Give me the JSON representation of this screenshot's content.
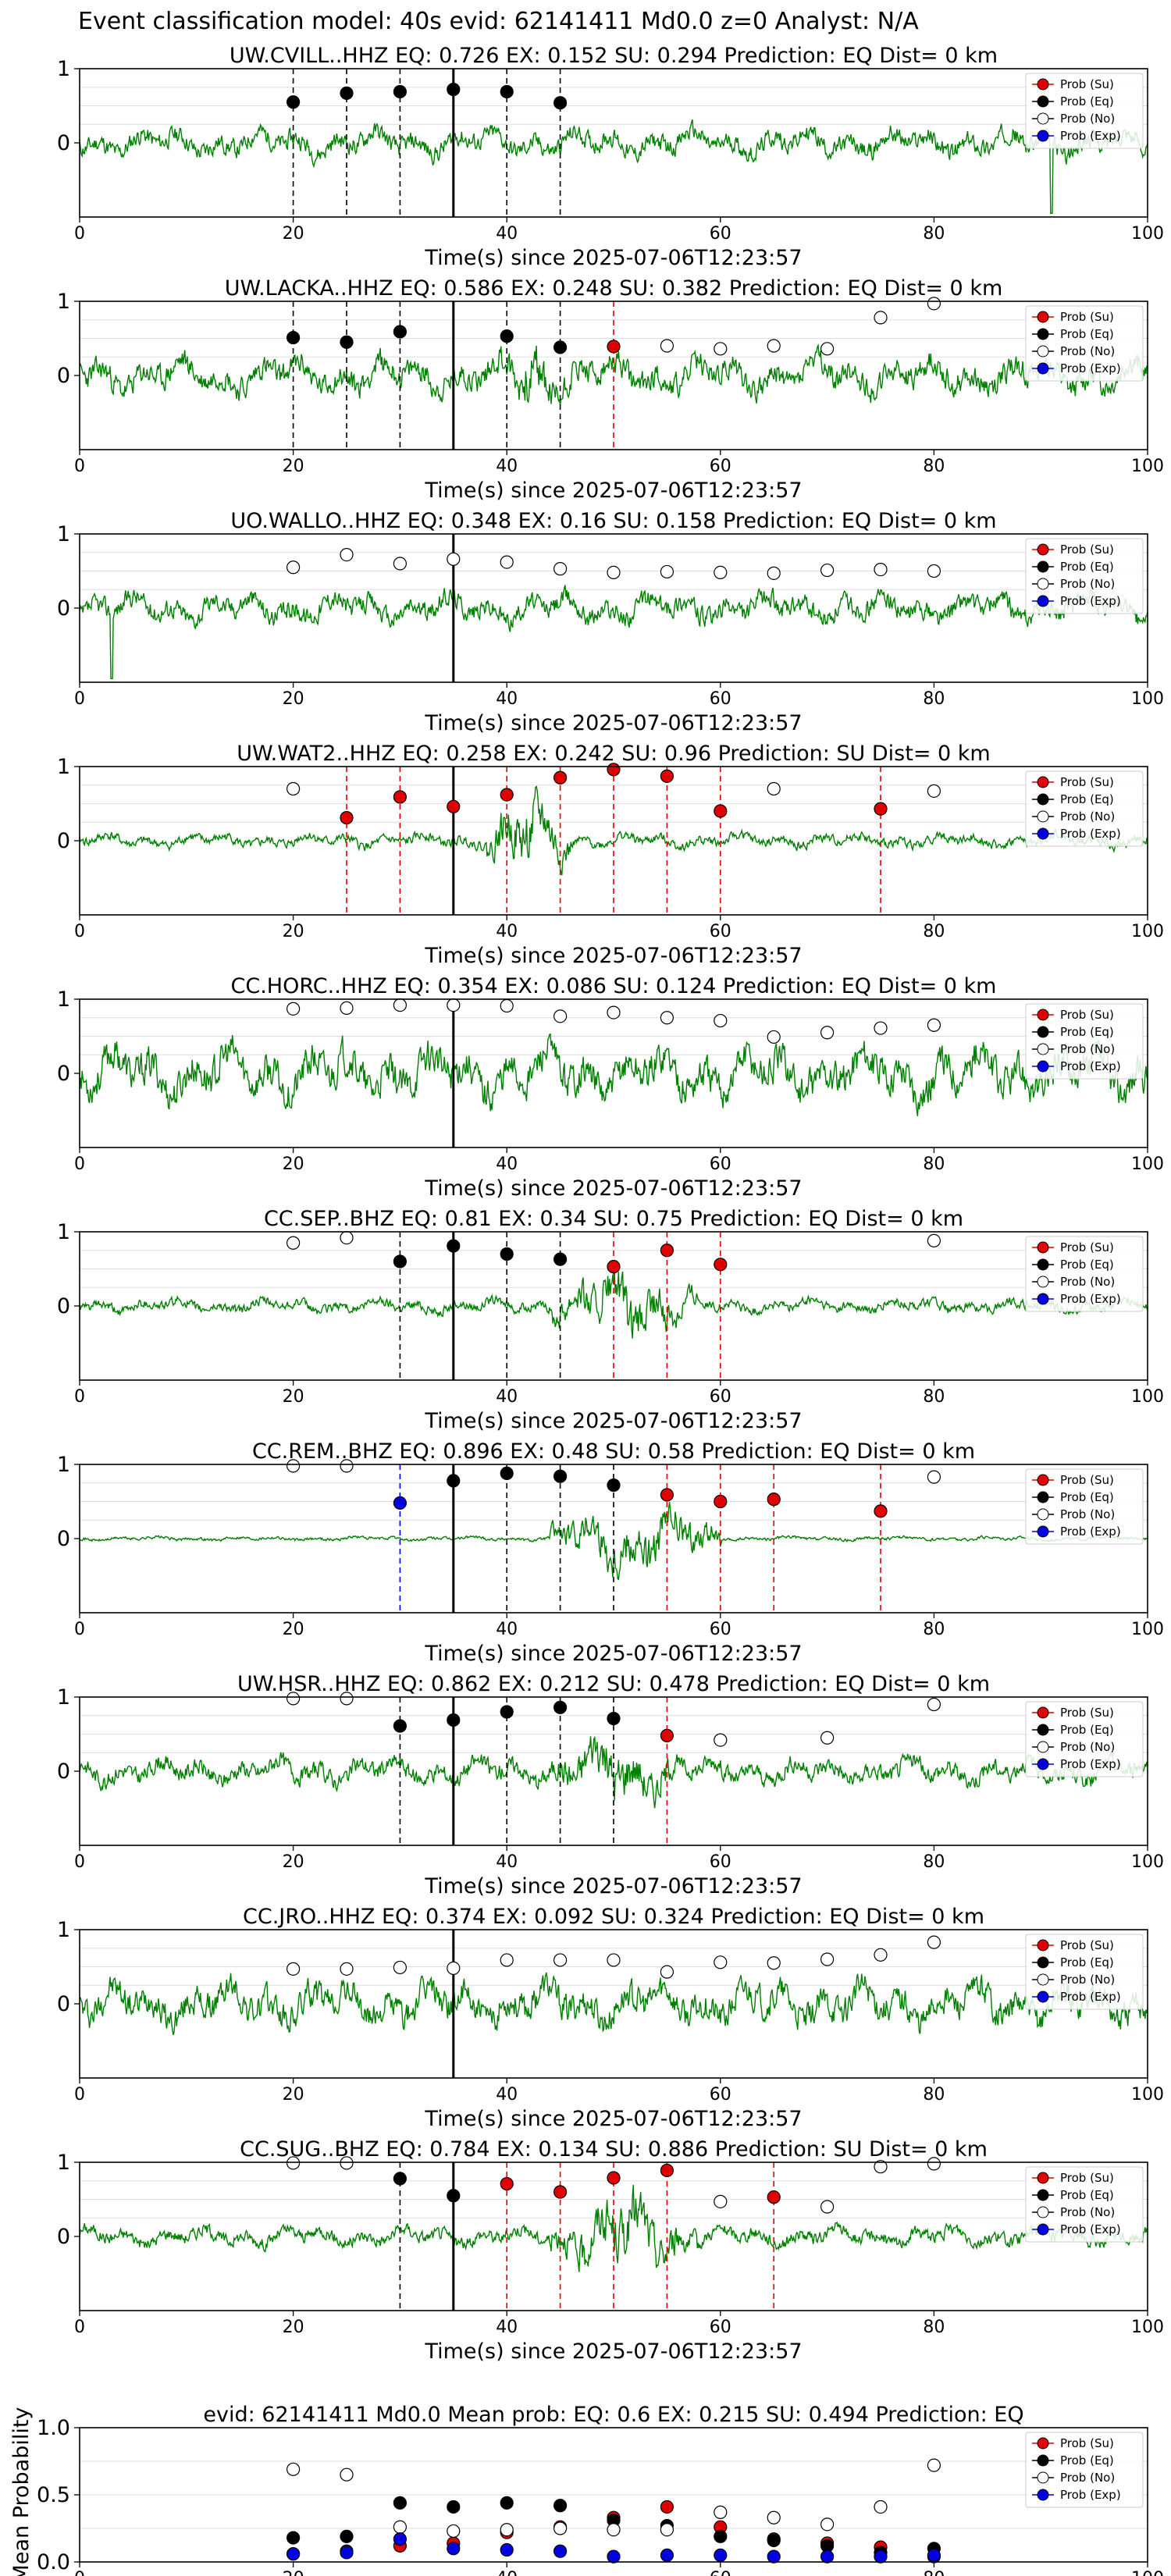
{
  "figure": {
    "suptitle": "Event classification model: 40s evid: 62141411 Md0.0 z=0 Analyst: N/A",
    "xlabel": "Time(s) since 2025-07-06T12:23:57",
    "xticks": [
      "0",
      "20",
      "40",
      "60",
      "80",
      "100"
    ],
    "yticks": [
      "1",
      "0"
    ],
    "legend": [
      "Prob (Su)",
      "Prob (Eq)",
      "Prob (No)",
      "Prob (Exp)"
    ],
    "legend_placement": "top-right",
    "colors": {
      "waveform": "#008000",
      "su": "#e00000",
      "eq": "#000000",
      "no": "#ffffff",
      "exp": "#0000e0",
      "grid": "#dddddd"
    }
  },
  "chart_data": [
    {
      "type": "line",
      "title": "UW.CVILL..HHZ   EQ: 0.726  EX: 0.152  SU: 0.294   Prediction: EQ    Dist= 0 km",
      "xlabel": "Time(s) since 2025-07-06T12:23:57",
      "xlim": [
        0,
        100
      ],
      "ylim": [
        -1,
        1
      ],
      "seed": 11,
      "amp": 0.32,
      "burst": null,
      "spike": [
        [
          91,
          -0.95
        ]
      ],
      "pick": 35,
      "vlines": [
        {
          "t": 20,
          "c": "eq"
        },
        {
          "t": 25,
          "c": "eq"
        },
        {
          "t": 30,
          "c": "eq"
        },
        {
          "t": 40,
          "c": "eq"
        },
        {
          "t": 45,
          "c": "eq"
        }
      ],
      "points": [
        {
          "t": 20,
          "p": 0.55,
          "c": "eq"
        },
        {
          "t": 25,
          "p": 0.67,
          "c": "eq"
        },
        {
          "t": 30,
          "p": 0.69,
          "c": "eq"
        },
        {
          "t": 35,
          "p": 0.72,
          "c": "eq"
        },
        {
          "t": 40,
          "p": 0.69,
          "c": "eq"
        },
        {
          "t": 45,
          "p": 0.54,
          "c": "eq"
        }
      ]
    },
    {
      "type": "line",
      "title": "UW.LACKA..HHZ   EQ: 0.586  EX: 0.248  SU: 0.382   Prediction: EQ    Dist= 0 km",
      "xlabel": "Time(s) since 2025-07-06T12:23:57",
      "xlim": [
        0,
        100
      ],
      "ylim": [
        -1,
        1
      ],
      "seed": 23,
      "amp": 0.42,
      "burst": [
        38,
        47,
        0.9
      ],
      "spike": null,
      "pick": 35,
      "vlines": [
        {
          "t": 20,
          "c": "eq"
        },
        {
          "t": 25,
          "c": "eq"
        },
        {
          "t": 30,
          "c": "eq"
        },
        {
          "t": 40,
          "c": "eq"
        },
        {
          "t": 45,
          "c": "eq"
        },
        {
          "t": 50,
          "c": "su"
        }
      ],
      "points": [
        {
          "t": 20,
          "p": 0.51,
          "c": "eq"
        },
        {
          "t": 25,
          "p": 0.45,
          "c": "eq"
        },
        {
          "t": 30,
          "p": 0.59,
          "c": "eq"
        },
        {
          "t": 40,
          "p": 0.53,
          "c": "eq"
        },
        {
          "t": 45,
          "p": 0.38,
          "c": "eq"
        },
        {
          "t": 50,
          "p": 0.39,
          "c": "su"
        },
        {
          "t": 55,
          "p": 0.4,
          "c": "no"
        },
        {
          "t": 60,
          "p": 0.36,
          "c": "no"
        },
        {
          "t": 65,
          "p": 0.4,
          "c": "no"
        },
        {
          "t": 70,
          "p": 0.36,
          "c": "no"
        },
        {
          "t": 75,
          "p": 0.78,
          "c": "no"
        },
        {
          "t": 80,
          "p": 0.97,
          "c": "no"
        }
      ]
    },
    {
      "type": "line",
      "title": "UO.WALLO..HHZ   EQ: 0.348  EX: 0.16  SU: 0.158   Prediction: EQ    Dist= 0 km",
      "xlabel": "Time(s) since 2025-07-06T12:23:57",
      "xlim": [
        0,
        100
      ],
      "ylim": [
        -1,
        1
      ],
      "seed": 37,
      "amp": 0.34,
      "burst": null,
      "spike": [
        [
          3,
          -0.95
        ]
      ],
      "pick": 35,
      "vlines": [],
      "points": [
        {
          "t": 20,
          "p": 0.55,
          "c": "no"
        },
        {
          "t": 25,
          "p": 0.72,
          "c": "no"
        },
        {
          "t": 30,
          "p": 0.6,
          "c": "no"
        },
        {
          "t": 35,
          "p": 0.66,
          "c": "no"
        },
        {
          "t": 40,
          "p": 0.62,
          "c": "no"
        },
        {
          "t": 45,
          "p": 0.53,
          "c": "no"
        },
        {
          "t": 50,
          "p": 0.48,
          "c": "no"
        },
        {
          "t": 55,
          "p": 0.49,
          "c": "no"
        },
        {
          "t": 60,
          "p": 0.48,
          "c": "no"
        },
        {
          "t": 65,
          "p": 0.47,
          "c": "no"
        },
        {
          "t": 70,
          "p": 0.51,
          "c": "no"
        },
        {
          "t": 75,
          "p": 0.52,
          "c": "no"
        },
        {
          "t": 80,
          "p": 0.5,
          "c": "no"
        }
      ]
    },
    {
      "type": "line",
      "title": "UW.WAT2..HHZ   EQ: 0.258  EX: 0.242  SU: 0.96   Prediction: SU    Dist= 0 km",
      "xlabel": "Time(s) since 2025-07-06T12:23:57",
      "xlim": [
        0,
        100
      ],
      "ylim": [
        -1,
        1
      ],
      "seed": 41,
      "amp": 0.16,
      "burst": [
        38,
        46,
        1.0
      ],
      "spike": null,
      "pick": 35,
      "vlines": [
        {
          "t": 25,
          "c": "su"
        },
        {
          "t": 30,
          "c": "su"
        },
        {
          "t": 40,
          "c": "su"
        },
        {
          "t": 45,
          "c": "su"
        },
        {
          "t": 50,
          "c": "su"
        },
        {
          "t": 55,
          "c": "su"
        },
        {
          "t": 60,
          "c": "su"
        },
        {
          "t": 75,
          "c": "su"
        }
      ],
      "points": [
        {
          "t": 20,
          "p": 0.7,
          "c": "no"
        },
        {
          "t": 25,
          "p": 0.31,
          "c": "su"
        },
        {
          "t": 30,
          "p": 0.59,
          "c": "su"
        },
        {
          "t": 35,
          "p": 0.46,
          "c": "su"
        },
        {
          "t": 40,
          "p": 0.62,
          "c": "su"
        },
        {
          "t": 45,
          "p": 0.85,
          "c": "su"
        },
        {
          "t": 50,
          "p": 0.96,
          "c": "su"
        },
        {
          "t": 55,
          "p": 0.87,
          "c": "su"
        },
        {
          "t": 60,
          "p": 0.4,
          "c": "su"
        },
        {
          "t": 65,
          "p": 0.7,
          "c": "no"
        },
        {
          "t": 75,
          "p": 0.43,
          "c": "su"
        },
        {
          "t": 80,
          "p": 0.67,
          "c": "no"
        }
      ]
    },
    {
      "type": "line",
      "title": "CC.HORC..HHZ   EQ: 0.354  EX: 0.086  SU: 0.124   Prediction: EQ    Dist= 0 km",
      "xlabel": "Time(s) since 2025-07-06T12:23:57",
      "xlim": [
        0,
        100
      ],
      "ylim": [
        -1,
        1
      ],
      "seed": 53,
      "amp": 0.6,
      "burst": null,
      "spike": null,
      "pick": 35,
      "vlines": [],
      "points": [
        {
          "t": 20,
          "p": 0.87,
          "c": "no"
        },
        {
          "t": 25,
          "p": 0.88,
          "c": "no"
        },
        {
          "t": 30,
          "p": 0.92,
          "c": "no"
        },
        {
          "t": 35,
          "p": 0.92,
          "c": "no"
        },
        {
          "t": 40,
          "p": 0.91,
          "c": "no"
        },
        {
          "t": 45,
          "p": 0.77,
          "c": "no"
        },
        {
          "t": 50,
          "p": 0.82,
          "c": "no"
        },
        {
          "t": 55,
          "p": 0.75,
          "c": "no"
        },
        {
          "t": 60,
          "p": 0.71,
          "c": "no"
        },
        {
          "t": 65,
          "p": 0.49,
          "c": "no"
        },
        {
          "t": 70,
          "p": 0.55,
          "c": "no"
        },
        {
          "t": 75,
          "p": 0.61,
          "c": "no"
        },
        {
          "t": 80,
          "p": 0.65,
          "c": "no"
        }
      ]
    },
    {
      "type": "line",
      "title": "CC.SEP..BHZ   EQ: 0.81  EX: 0.34  SU: 0.75   Prediction: EQ    Dist= 0 km",
      "xlabel": "Time(s) since 2025-07-06T12:23:57",
      "xlim": [
        0,
        100
      ],
      "ylim": [
        -1,
        1
      ],
      "seed": 61,
      "amp": 0.16,
      "burst": [
        44,
        58,
        0.85
      ],
      "spike": null,
      "pick": 35,
      "vlines": [
        {
          "t": 30,
          "c": "eq"
        },
        {
          "t": 40,
          "c": "eq"
        },
        {
          "t": 45,
          "c": "eq"
        },
        {
          "t": 50,
          "c": "su"
        },
        {
          "t": 55,
          "c": "su"
        },
        {
          "t": 60,
          "c": "su"
        }
      ],
      "points": [
        {
          "t": 20,
          "p": 0.85,
          "c": "no"
        },
        {
          "t": 25,
          "p": 0.92,
          "c": "no"
        },
        {
          "t": 30,
          "p": 0.6,
          "c": "eq"
        },
        {
          "t": 35,
          "p": 0.81,
          "c": "eq"
        },
        {
          "t": 40,
          "p": 0.7,
          "c": "eq"
        },
        {
          "t": 45,
          "p": 0.63,
          "c": "eq"
        },
        {
          "t": 50,
          "p": 0.53,
          "c": "su"
        },
        {
          "t": 55,
          "p": 0.75,
          "c": "su"
        },
        {
          "t": 60,
          "p": 0.56,
          "c": "su"
        },
        {
          "t": 80,
          "p": 0.88,
          "c": "no"
        }
      ]
    },
    {
      "type": "line",
      "title": "CC.REM..BHZ   EQ: 0.896  EX: 0.48  SU: 0.58   Prediction: EQ    Dist= 0 km",
      "xlabel": "Time(s) since 2025-07-06T12:23:57",
      "xlim": [
        0,
        100
      ],
      "ylim": [
        -1,
        1
      ],
      "seed": 71,
      "amp": 0.05,
      "burst": [
        44,
        60,
        0.8
      ],
      "spike": null,
      "pick": 35,
      "vlines": [
        {
          "t": 30,
          "c": "exp"
        },
        {
          "t": 40,
          "c": "eq"
        },
        {
          "t": 45,
          "c": "eq"
        },
        {
          "t": 50,
          "c": "eq"
        },
        {
          "t": 55,
          "c": "su"
        },
        {
          "t": 60,
          "c": "su"
        },
        {
          "t": 65,
          "c": "su"
        },
        {
          "t": 75,
          "c": "su"
        }
      ],
      "points": [
        {
          "t": 20,
          "p": 0.98,
          "c": "no"
        },
        {
          "t": 25,
          "p": 0.98,
          "c": "no"
        },
        {
          "t": 30,
          "p": 0.48,
          "c": "exp"
        },
        {
          "t": 35,
          "p": 0.78,
          "c": "eq"
        },
        {
          "t": 40,
          "p": 0.88,
          "c": "eq"
        },
        {
          "t": 45,
          "p": 0.84,
          "c": "eq"
        },
        {
          "t": 50,
          "p": 0.72,
          "c": "eq"
        },
        {
          "t": 55,
          "p": 0.59,
          "c": "su"
        },
        {
          "t": 60,
          "p": 0.5,
          "c": "su"
        },
        {
          "t": 65,
          "p": 0.53,
          "c": "su"
        },
        {
          "t": 75,
          "p": 0.37,
          "c": "su"
        },
        {
          "t": 80,
          "p": 0.83,
          "c": "no"
        }
      ]
    },
    {
      "type": "line",
      "title": "UW.HSR..HHZ   EQ: 0.862  EX: 0.212  SU: 0.478   Prediction: EQ    Dist= 0 km",
      "xlabel": "Time(s) since 2025-07-06T12:23:57",
      "xlim": [
        0,
        100
      ],
      "ylim": [
        -1,
        1
      ],
      "seed": 83,
      "amp": 0.3,
      "burst": [
        44,
        56,
        0.9
      ],
      "spike": null,
      "pick": 35,
      "vlines": [
        {
          "t": 30,
          "c": "eq"
        },
        {
          "t": 40,
          "c": "eq"
        },
        {
          "t": 45,
          "c": "eq"
        },
        {
          "t": 50,
          "c": "eq"
        },
        {
          "t": 55,
          "c": "su"
        }
      ],
      "points": [
        {
          "t": 20,
          "p": 0.98,
          "c": "no"
        },
        {
          "t": 25,
          "p": 0.98,
          "c": "no"
        },
        {
          "t": 30,
          "p": 0.61,
          "c": "eq"
        },
        {
          "t": 35,
          "p": 0.69,
          "c": "eq"
        },
        {
          "t": 40,
          "p": 0.8,
          "c": "eq"
        },
        {
          "t": 45,
          "p": 0.86,
          "c": "eq"
        },
        {
          "t": 50,
          "p": 0.71,
          "c": "eq"
        },
        {
          "t": 55,
          "p": 0.48,
          "c": "su"
        },
        {
          "t": 60,
          "p": 0.42,
          "c": "no"
        },
        {
          "t": 70,
          "p": 0.45,
          "c": "no"
        },
        {
          "t": 80,
          "p": 0.9,
          "c": "no"
        }
      ]
    },
    {
      "type": "line",
      "title": "CC.JRO..HHZ   EQ: 0.374  EX: 0.092  SU: 0.324   Prediction: EQ    Dist= 0 km",
      "xlabel": "Time(s) since 2025-07-06T12:23:57",
      "xlim": [
        0,
        100
      ],
      "ylim": [
        -1,
        1
      ],
      "seed": 97,
      "amp": 0.5,
      "burst": null,
      "spike": null,
      "pick": 35,
      "vlines": [],
      "points": [
        {
          "t": 20,
          "p": 0.47,
          "c": "no"
        },
        {
          "t": 25,
          "p": 0.47,
          "c": "no"
        },
        {
          "t": 30,
          "p": 0.49,
          "c": "no"
        },
        {
          "t": 35,
          "p": 0.48,
          "c": "no"
        },
        {
          "t": 40,
          "p": 0.59,
          "c": "no"
        },
        {
          "t": 45,
          "p": 0.59,
          "c": "no"
        },
        {
          "t": 50,
          "p": 0.59,
          "c": "no"
        },
        {
          "t": 55,
          "p": 0.43,
          "c": "no"
        },
        {
          "t": 60,
          "p": 0.56,
          "c": "no"
        },
        {
          "t": 65,
          "p": 0.55,
          "c": "no"
        },
        {
          "t": 70,
          "p": 0.6,
          "c": "no"
        },
        {
          "t": 75,
          "p": 0.66,
          "c": "no"
        },
        {
          "t": 80,
          "p": 0.83,
          "c": "no"
        }
      ]
    },
    {
      "type": "line",
      "title": "CC.SUG..BHZ   EQ: 0.784  EX: 0.134  SU: 0.886   Prediction: SU    Dist= 0 km",
      "xlabel": "Time(s) since 2025-07-06T12:23:57",
      "xlim": [
        0,
        100
      ],
      "ylim": [
        -1,
        1
      ],
      "seed": 101,
      "amp": 0.22,
      "burst": [
        44,
        58,
        0.95
      ],
      "spike": null,
      "pick": 35,
      "vlines": [
        {
          "t": 30,
          "c": "eq"
        },
        {
          "t": 40,
          "c": "su"
        },
        {
          "t": 45,
          "c": "su"
        },
        {
          "t": 50,
          "c": "su"
        },
        {
          "t": 55,
          "c": "su"
        },
        {
          "t": 65,
          "c": "su"
        }
      ],
      "points": [
        {
          "t": 20,
          "p": 0.99,
          "c": "no"
        },
        {
          "t": 25,
          "p": 0.99,
          "c": "no"
        },
        {
          "t": 30,
          "p": 0.78,
          "c": "eq"
        },
        {
          "t": 35,
          "p": 0.55,
          "c": "eq"
        },
        {
          "t": 40,
          "p": 0.71,
          "c": "su"
        },
        {
          "t": 45,
          "p": 0.6,
          "c": "su"
        },
        {
          "t": 50,
          "p": 0.79,
          "c": "su"
        },
        {
          "t": 55,
          "p": 0.89,
          "c": "su"
        },
        {
          "t": 60,
          "p": 0.47,
          "c": "no"
        },
        {
          "t": 65,
          "p": 0.53,
          "c": "su"
        },
        {
          "t": 70,
          "p": 0.4,
          "c": "no"
        },
        {
          "t": 75,
          "p": 0.94,
          "c": "no"
        },
        {
          "t": 80,
          "p": 0.98,
          "c": "no"
        }
      ]
    },
    {
      "type": "scatter",
      "title": "evid: 62141411  Md0.0   Mean prob:   EQ: 0.6  EX: 0.215  SU: 0.494   Prediction: EQ",
      "xlabel": "",
      "ylabel": "Mean Probability",
      "xlim": [
        0,
        100
      ],
      "ylim": [
        0,
        1
      ],
      "yticks": [
        "1.0",
        "0.5",
        "0.0"
      ],
      "series": [
        {
          "name": "Prob (Su)",
          "c": "su",
          "x": [
            20,
            25,
            30,
            35,
            40,
            45,
            50,
            55,
            60,
            65,
            70,
            75,
            80
          ],
          "y": [
            0.06,
            0.08,
            0.12,
            0.14,
            0.22,
            0.26,
            0.33,
            0.41,
            0.26,
            0.17,
            0.14,
            0.11,
            0.04
          ]
        },
        {
          "name": "Prob (Eq)",
          "c": "eq",
          "x": [
            20,
            25,
            30,
            35,
            40,
            45,
            50,
            55,
            60,
            65,
            70,
            75,
            80
          ],
          "y": [
            0.18,
            0.19,
            0.44,
            0.41,
            0.44,
            0.42,
            0.31,
            0.27,
            0.19,
            0.16,
            0.12,
            0.07,
            0.1
          ]
        },
        {
          "name": "Prob (No)",
          "c": "no",
          "x": [
            20,
            25,
            30,
            35,
            40,
            45,
            50,
            55,
            60,
            65,
            70,
            75,
            80
          ],
          "y": [
            0.69,
            0.65,
            0.26,
            0.23,
            0.24,
            0.25,
            0.24,
            0.24,
            0.37,
            0.33,
            0.28,
            0.41,
            0.72
          ]
        },
        {
          "name": "Prob (Exp)",
          "c": "exp",
          "x": [
            20,
            25,
            30,
            35,
            40,
            45,
            50,
            55,
            60,
            65,
            70,
            75,
            80
          ],
          "y": [
            0.06,
            0.07,
            0.17,
            0.1,
            0.09,
            0.08,
            0.04,
            0.05,
            0.05,
            0.04,
            0.04,
            0.04,
            0.05
          ]
        }
      ]
    }
  ]
}
